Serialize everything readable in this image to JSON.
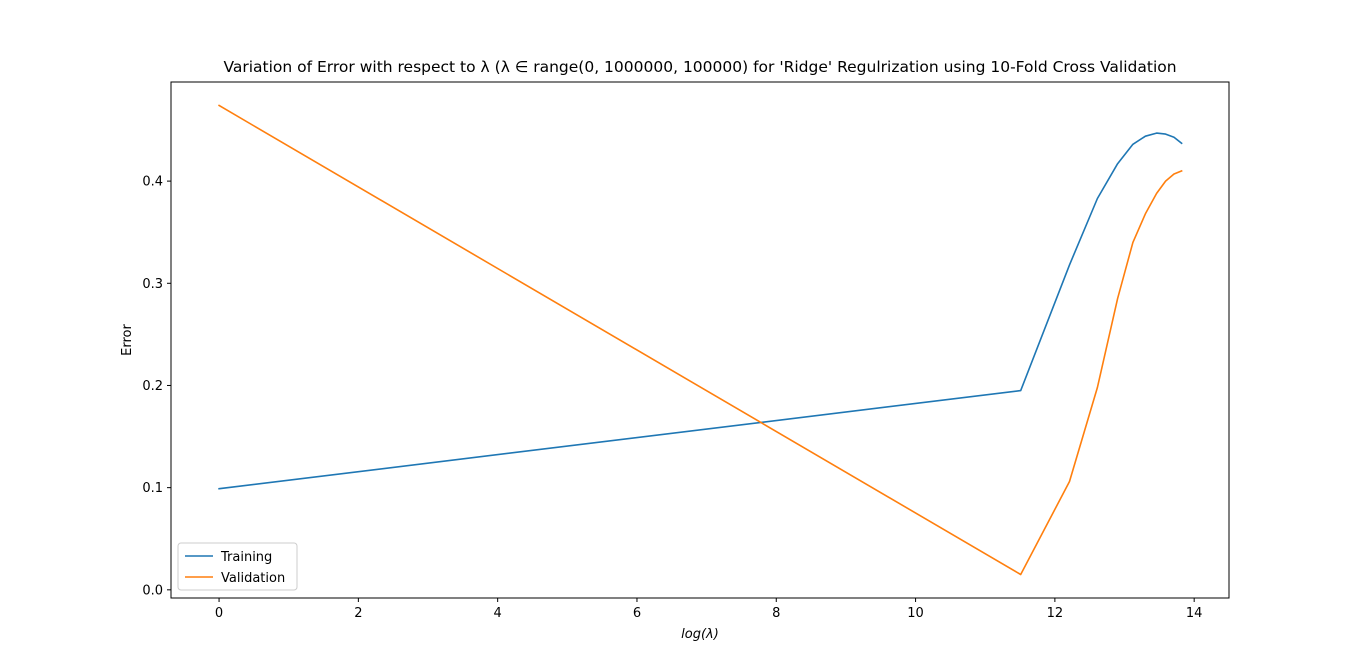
{
  "chart_data": {
    "type": "line",
    "title": "Variation of Error with respect to λ (λ ∈ range(0, 1000000, 100000) for 'Ridge' Regulrization using 10-Fold Cross Validation",
    "xlabel": "log(λ)",
    "ylabel": "Error",
    "xlim": [
      -0.69,
      14.5
    ],
    "ylim": [
      -0.008,
      0.497
    ],
    "xticks": [
      0,
      2,
      4,
      6,
      8,
      10,
      12,
      14
    ],
    "xtick_labels": [
      "0",
      "2",
      "4",
      "6",
      "8",
      "10",
      "12",
      "14"
    ],
    "yticks": [
      0.0,
      0.1,
      0.2,
      0.3,
      0.4
    ],
    "ytick_labels": [
      "0.0",
      "0.1",
      "0.2",
      "0.3",
      "0.4"
    ],
    "grid": false,
    "legend_position": "bottom-left",
    "series": [
      {
        "name": "Training",
        "color": "#1f77b4",
        "x": [
          0,
          11.51,
          12.21,
          12.61,
          12.9,
          13.12,
          13.3,
          13.46,
          13.59,
          13.71,
          13.82
        ],
        "y": [
          0.099,
          0.195,
          0.318,
          0.383,
          0.417,
          0.436,
          0.444,
          0.447,
          0.446,
          0.443,
          0.437
        ]
      },
      {
        "name": "Validation",
        "color": "#ff7f0e",
        "x": [
          0,
          11.51,
          12.21,
          12.61,
          12.9,
          13.12,
          13.3,
          13.46,
          13.59,
          13.71,
          13.82
        ],
        "y": [
          0.474,
          0.015,
          0.106,
          0.198,
          0.285,
          0.34,
          0.368,
          0.388,
          0.4,
          0.407,
          0.41
        ]
      }
    ]
  }
}
